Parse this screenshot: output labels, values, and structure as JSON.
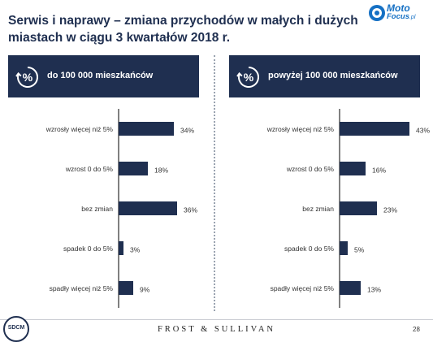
{
  "header": {
    "title": "Serwis i naprawy – zmiana przychodów w małych i dużych miastach w ciągu 3 kwartałów 2018 r.",
    "logo_top": "Moto",
    "logo_bottom": "Focus",
    "logo_suffix": ".pl"
  },
  "panels": [
    {
      "label": "do 100 000 mieszkańców",
      "icon_text": "%"
    },
    {
      "label": "powyżej 100 000 mieszkańców",
      "icon_text": "%"
    }
  ],
  "chart_data": [
    {
      "type": "bar",
      "orientation": "horizontal",
      "title": "do 100 000 mieszkańców",
      "categories": [
        "wzrosły więcej niż 5%",
        "wzrost 0 do 5%",
        "bez zmian",
        "spadek 0 do 5%",
        "spadły więcej niż 5%"
      ],
      "values": [
        34,
        18,
        36,
        3,
        9
      ],
      "value_labels": [
        "34%",
        "18%",
        "36%",
        "3%",
        "9%"
      ],
      "unit": "%",
      "xlim": [
        0,
        100
      ],
      "grid": false,
      "bar_color": "#1f2f50"
    },
    {
      "type": "bar",
      "orientation": "horizontal",
      "title": "powyżej 100 000 mieszkańców",
      "categories": [
        "wzrosły więcej niż 5%",
        "wzrost 0 do 5%",
        "bez zmian",
        "spadek 0 do 5%",
        "spadły więcej niż 5%"
      ],
      "values": [
        43,
        16,
        23,
        5,
        13
      ],
      "value_labels": [
        "43%",
        "16%",
        "23%",
        "5%",
        "13%"
      ],
      "unit": "%",
      "xlim": [
        0,
        100
      ],
      "grid": false,
      "bar_color": "#1f2f50"
    }
  ],
  "footer": {
    "brand": "FROST & SULLIVAN",
    "page": "28",
    "badge": "SDCM"
  },
  "colors": {
    "navy": "#1f2f50",
    "accent_blue": "#1570c4",
    "axis": "#000000"
  },
  "icons": [
    "percent-circle-icon",
    "motofocus-logo-icon",
    "sdcm-badge-icon"
  ]
}
